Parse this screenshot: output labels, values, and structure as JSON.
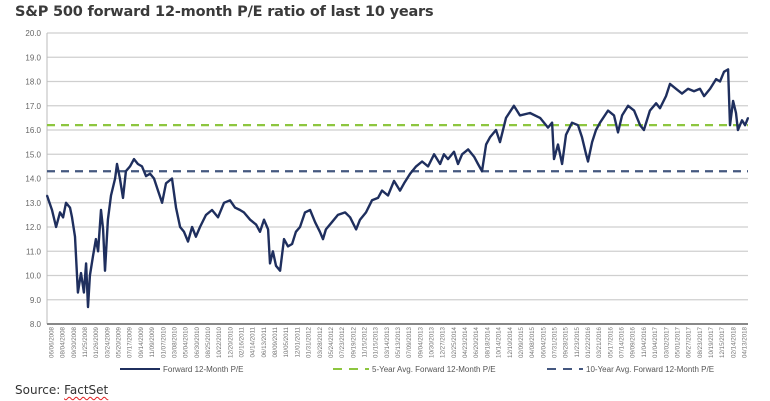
{
  "chart_data": {
    "type": "line",
    "title": "S&P 500 forward 12-month P/E ratio of last 10 years",
    "xlabel": "",
    "ylabel": "",
    "ylim": [
      8.0,
      20.0
    ],
    "yticks": [
      "8.0",
      "9.0",
      "10.0",
      "11.0",
      "12.0",
      "13.0",
      "14.0",
      "15.0",
      "16.0",
      "17.0",
      "18.0",
      "19.0",
      "20.0"
    ],
    "grid": true,
    "legend_position": "bottom",
    "x_tick_labels": [
      "06/06/2008",
      "08/04/2008",
      "09/30/2008",
      "11/25/2008",
      "01/26/2009",
      "03/24/2009",
      "05/20/2009",
      "07/17/2009",
      "09/14/2009",
      "11/09/2009",
      "01/07/2010",
      "03/08/2010",
      "05/04/2010",
      "06/30/2010",
      "08/25/2010",
      "10/22/2010",
      "12/20/2010",
      "02/16/2011",
      "04/14/2011",
      "06/13/2011",
      "08/09/2011",
      "10/05/2011",
      "12/01/2011",
      "01/31/2012",
      "03/28/2012",
      "05/24/2012",
      "07/23/2012",
      "09/19/2012",
      "11/15/2012",
      "01/15/2013",
      "03/14/2013",
      "05/13/2013",
      "07/09/2013",
      "09/04/2013",
      "10/30/2013",
      "12/27/2013",
      "02/25/2014",
      "04/23/2014",
      "06/20/2014",
      "08/18/2014",
      "10/14/2014",
      "12/10/2014",
      "02/09/2015",
      "04/08/2015",
      "06/04/2015",
      "07/31/2015",
      "09/28/2015",
      "11/23/2015",
      "01/22/2016",
      "03/21/2016",
      "05/17/2016",
      "07/14/2016",
      "09/09/2016",
      "11/04/2016",
      "01/04/2017",
      "03/02/2017",
      "05/01/2017",
      "06/27/2017",
      "08/23/2017",
      "10/19/2017",
      "12/15/2017",
      "02/14/2018",
      "04/13/2018"
    ],
    "xlim": [
      "2008-06-06",
      "2018-05-09"
    ],
    "series": [
      {
        "name": "Forward 12-Month P/E",
        "color": "#1f2f5e",
        "style": "solid",
        "x": [
          "2008-06-06",
          "2008-07-02",
          "2008-07-23",
          "2008-08-12",
          "2008-08-28",
          "2008-09-12",
          "2008-10-03",
          "2008-10-13",
          "2008-10-29",
          "2008-11-13",
          "2008-11-29",
          "2008-12-14",
          "2008-12-25",
          "2009-01-04",
          "2009-01-14",
          "2009-01-30",
          "2009-02-14",
          "2009-02-25",
          "2009-03-12",
          "2009-03-23",
          "2009-04-02",
          "2009-04-17",
          "2009-05-03",
          "2009-05-24",
          "2009-06-03",
          "2009-06-18",
          "2009-07-04",
          "2009-07-19",
          "2009-08-09",
          "2009-08-30",
          "2009-09-19",
          "2009-10-10",
          "2009-10-31",
          "2009-11-21",
          "2009-12-11",
          "2010-01-01",
          "2010-01-22",
          "2010-02-11",
          "2010-03-14",
          "2010-04-04",
          "2010-04-25",
          "2010-05-15",
          "2010-06-05",
          "2010-06-26",
          "2010-07-16",
          "2010-08-06",
          "2010-09-06",
          "2010-10-07",
          "2010-11-07",
          "2010-12-08",
          "2011-01-08",
          "2011-02-03",
          "2011-03-01",
          "2011-03-21",
          "2011-04-22",
          "2011-05-23",
          "2011-06-12",
          "2011-07-03",
          "2011-07-24",
          "2011-08-03",
          "2011-08-18",
          "2011-09-03",
          "2011-09-24",
          "2011-10-14",
          "2011-11-04",
          "2011-11-25",
          "2011-12-15",
          "2012-01-05",
          "2012-01-31",
          "2012-02-26",
          "2012-03-23",
          "2012-04-17",
          "2012-05-03",
          "2012-05-18",
          "2012-06-18",
          "2012-07-19",
          "2012-08-25",
          "2012-09-20",
          "2012-10-21",
          "2012-11-10",
          "2012-12-11",
          "2013-01-11",
          "2013-02-11",
          "2013-03-04",
          "2013-04-04",
          "2013-05-05",
          "2013-06-05",
          "2013-06-26",
          "2013-07-27",
          "2013-08-27",
          "2013-09-27",
          "2013-10-28",
          "2013-11-28",
          "2013-12-29",
          "2014-01-18",
          "2014-02-08",
          "2014-03-11",
          "2014-04-01",
          "2014-04-22",
          "2014-05-23",
          "2014-06-23",
          "2014-07-13",
          "2014-08-03",
          "2014-08-24",
          "2014-09-13",
          "2014-10-14",
          "2014-11-04",
          "2014-12-05",
          "2015-01-15",
          "2015-02-15",
          "2015-04-08",
          "2015-05-30",
          "2015-07-10",
          "2015-07-31",
          "2015-08-10",
          "2015-08-31",
          "2015-09-21",
          "2015-10-11",
          "2015-11-11",
          "2015-12-12",
          "2016-01-02",
          "2016-01-23",
          "2016-02-02",
          "2016-02-23",
          "2016-03-14",
          "2016-04-04",
          "2016-05-15",
          "2016-06-15",
          "2016-07-06",
          "2016-07-27",
          "2016-08-27",
          "2016-09-27",
          "2016-10-28",
          "2016-11-17",
          "2016-12-18",
          "2017-01-19",
          "2017-02-08",
          "2017-03-11",
          "2017-04-01",
          "2017-05-02",
          "2017-06-02",
          "2017-07-03",
          "2017-08-03",
          "2017-09-03",
          "2017-09-24",
          "2017-10-25",
          "2017-11-25",
          "2017-12-15",
          "2018-01-05",
          "2018-01-26",
          "2018-02-05",
          "2018-02-21",
          "2018-03-08",
          "2018-03-18",
          "2018-04-08",
          "2018-04-24",
          "2018-05-09"
        ],
        "values": [
          13.3,
          12.7,
          12.0,
          12.6,
          12.4,
          13.0,
          12.8,
          12.4,
          11.6,
          9.3,
          10.1,
          9.3,
          10.5,
          8.7,
          10.0,
          10.8,
          11.5,
          11.0,
          12.7,
          11.9,
          10.2,
          12.3,
          13.3,
          14.0,
          14.6,
          14.0,
          13.2,
          14.3,
          14.5,
          14.8,
          14.6,
          14.5,
          14.1,
          14.2,
          14.0,
          13.5,
          13.0,
          13.8,
          14.0,
          12.8,
          12.0,
          11.8,
          11.4,
          12.0,
          11.6,
          12.0,
          12.5,
          12.7,
          12.4,
          13.0,
          13.1,
          12.8,
          12.7,
          12.6,
          12.3,
          12.1,
          11.8,
          12.3,
          11.9,
          10.5,
          11.0,
          10.4,
          10.2,
          11.5,
          11.2,
          11.3,
          11.8,
          12.0,
          12.6,
          12.7,
          12.2,
          11.8,
          11.5,
          11.9,
          12.2,
          12.5,
          12.6,
          12.4,
          11.9,
          12.3,
          12.6,
          13.1,
          13.2,
          13.5,
          13.3,
          13.9,
          13.5,
          13.8,
          14.2,
          14.5,
          14.7,
          14.5,
          15.0,
          14.6,
          15.0,
          14.8,
          15.1,
          14.6,
          15.0,
          15.2,
          14.9,
          14.6,
          14.3,
          15.4,
          15.7,
          16.0,
          15.5,
          16.5,
          17.0,
          16.6,
          16.7,
          16.5,
          16.1,
          16.3,
          14.8,
          15.4,
          14.6,
          15.8,
          16.3,
          16.2,
          15.7,
          15.0,
          14.7,
          15.5,
          16.0,
          16.3,
          16.8,
          16.6,
          15.9,
          16.6,
          17.0,
          16.8,
          16.2,
          16.0,
          16.8,
          17.1,
          16.9,
          17.4,
          17.9,
          17.7,
          17.5,
          17.7,
          17.6,
          17.7,
          17.4,
          17.7,
          18.1,
          18.0,
          18.4,
          18.5,
          16.2,
          17.2,
          16.7,
          16.0,
          16.4,
          16.2,
          16.5
        ]
      },
      {
        "name": "5-Year Avg. Forward 12-Month P/E",
        "color": "#8dc63f",
        "style": "dashed",
        "value": 16.2
      },
      {
        "name": "10-Year Avg. Forward 12-Month P/E",
        "color": "#44577f",
        "style": "dashed",
        "value": 14.3
      }
    ]
  },
  "source": {
    "label": "Source: ",
    "name": "FactSet"
  }
}
